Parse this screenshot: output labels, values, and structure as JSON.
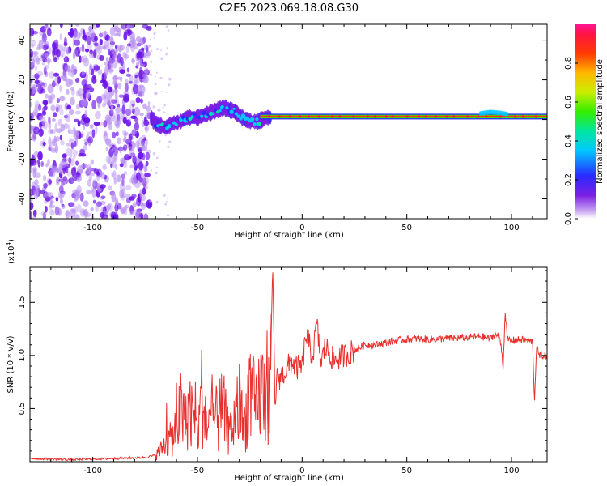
{
  "title": "C2E5.2023.069.18.08.G30",
  "chart_data": [
    {
      "type": "heatmap",
      "panel": "spectrogram",
      "xlabel": "Height of straight line (km)",
      "ylabel": "Frequency (Hz)",
      "xlim": [
        -130,
        117
      ],
      "ylim": [
        -50,
        48
      ],
      "xticks": [
        -100,
        -50,
        0,
        50,
        100
      ],
      "yticks": [
        -40,
        -20,
        0,
        20,
        40
      ],
      "grid": false,
      "regions": [
        {
          "x": [
            -130,
            -73
          ],
          "frequency": [
            -50,
            48
          ],
          "amplitude": [
            0.0,
            0.15
          ],
          "pattern": "noise"
        },
        {
          "x": [
            -72,
            -20
          ],
          "center_frequency": [
            -3,
            8
          ],
          "amplitude": [
            0.2,
            0.45
          ],
          "pattern": "wavy-band"
        },
        {
          "x": [
            -20,
            117
          ],
          "center_frequency": 1.5,
          "amplitude": [
            0.7,
            1.0
          ],
          "pattern": "steady-line"
        }
      ],
      "trace": {
        "x": [
          -72,
          -70,
          -68,
          -65,
          -62,
          -58,
          -55,
          -50,
          -45,
          -40,
          -37,
          -35,
          -32,
          -30,
          -27,
          -24,
          -21,
          -19,
          -17,
          -15,
          -12,
          -5,
          0,
          5,
          10,
          20,
          40,
          60,
          80,
          90,
          95,
          100,
          117
        ],
        "y": [
          1,
          -2,
          -3,
          -4,
          -2,
          -1,
          1,
          1,
          3,
          5,
          6,
          5,
          4,
          2,
          0,
          -1,
          -1,
          0,
          1,
          1,
          1.5,
          1.5,
          1.5,
          1,
          1.5,
          1.5,
          1.5,
          1.5,
          1.5,
          3,
          2.5,
          1.5,
          1.5
        ]
      },
      "colorbar": {
        "label": "Normalized spectral amplitude",
        "ticks": [
          0.0,
          0.2,
          0.4,
          0.6,
          0.8
        ],
        "range": [
          0,
          1
        ],
        "colormap": "hsv-rainbow"
      }
    },
    {
      "type": "line",
      "panel": "snr",
      "xlabel": "Height of straight line (km)",
      "ylabel": "SNR (10 * v/v)",
      "scale_label": "(x10",
      "scale_exponent": "4",
      "scale_suffix": ")",
      "xlim": [
        -130,
        117
      ],
      "ylim": [
        0,
        1.83
      ],
      "xticks": [
        -100,
        -50,
        0,
        50,
        100
      ],
      "yticks": [
        0.5,
        1.0,
        1.5
      ],
      "color": "#e8302e",
      "x": [
        -130,
        -110,
        -90,
        -75,
        -70,
        -67,
        -65,
        -62,
        -60,
        -58,
        -56,
        -54,
        -52,
        -50,
        -48,
        -45,
        -42,
        -40,
        -38,
        -35,
        -32,
        -30,
        -28,
        -25,
        -22,
        -20,
        -18,
        -16,
        -15,
        -14,
        -13,
        -12,
        -10,
        -8,
        -5,
        -3,
        0,
        2,
        5,
        7,
        9,
        11,
        13,
        15,
        20,
        25,
        30,
        35,
        40,
        45,
        50,
        55,
        60,
        70,
        80,
        85,
        90,
        92,
        94,
        95,
        96,
        97,
        98,
        100,
        105,
        110,
        111,
        112,
        113,
        117
      ],
      "y": [
        0.03,
        0.02,
        0.03,
        0.04,
        0.06,
        0.12,
        0.18,
        0.22,
        0.34,
        0.48,
        0.3,
        0.55,
        0.4,
        0.25,
        0.62,
        0.3,
        0.45,
        0.35,
        0.52,
        0.25,
        0.4,
        0.55,
        0.3,
        0.7,
        0.45,
        0.7,
        0.62,
        0.78,
        0.9,
        1.82,
        0.55,
        0.78,
        0.8,
        0.85,
        0.95,
        0.88,
        0.9,
        1.2,
        0.98,
        1.3,
        0.92,
        1.08,
        1.03,
        0.95,
        1.0,
        1.05,
        1.1,
        1.1,
        1.12,
        1.14,
        1.15,
        1.16,
        1.15,
        1.16,
        1.17,
        1.18,
        1.16,
        1.2,
        1.18,
        1.1,
        0.9,
        1.42,
        1.15,
        1.14,
        1.15,
        1.13,
        0.58,
        1.1,
        1.0,
        1.0
      ]
    }
  ]
}
